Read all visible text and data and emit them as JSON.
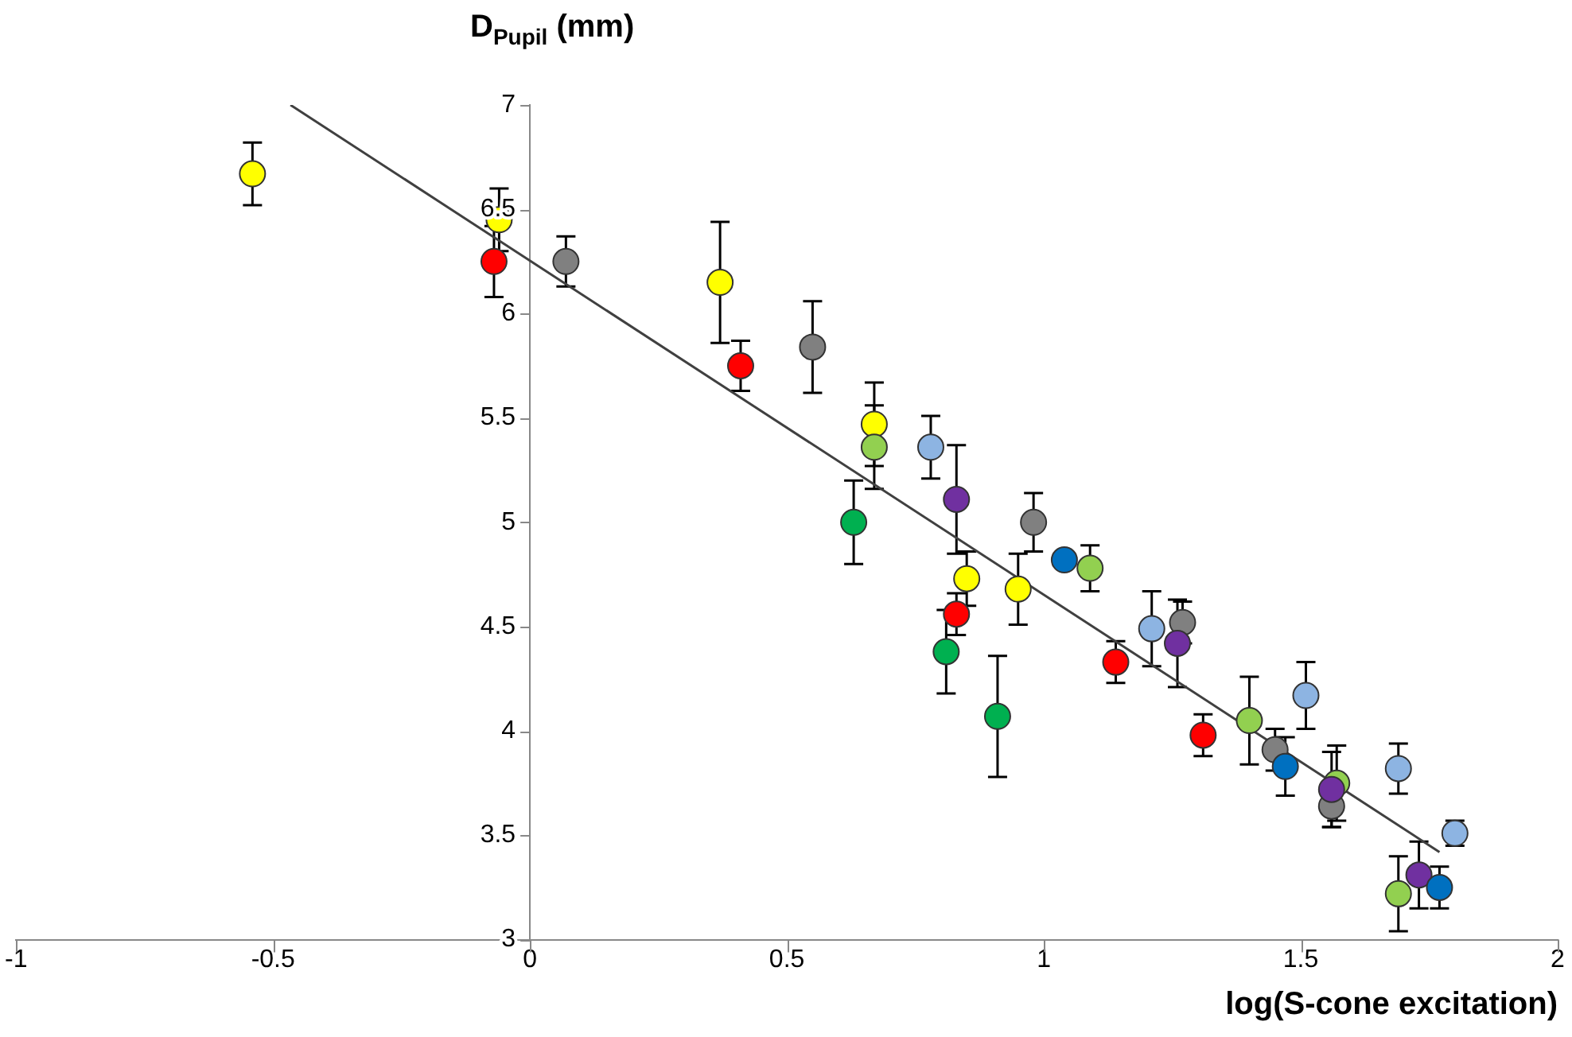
{
  "chart_data": {
    "type": "scatter",
    "xlabel": "log(S-cone excitation)",
    "ylabel": "D$_{Pupil}$ (mm)",
    "xlim": [
      -1,
      2
    ],
    "xticks": [
      -1,
      -0.5,
      0,
      0.5,
      1,
      1.5,
      2
    ],
    "ylim": [
      3,
      7
    ],
    "yticks": [
      3,
      3.5,
      4,
      4.5,
      5,
      5.5,
      6,
      6.5,
      7
    ],
    "grid": false,
    "legend": false,
    "marker": "circle",
    "series": [
      {
        "color": "#ffff00",
        "x": [
          -0.54,
          -0.06,
          0.37,
          0.67,
          0.85,
          0.95
        ],
        "values": [
          6.67,
          6.45,
          6.15,
          5.47,
          4.73,
          4.68
        ],
        "errors": [
          0.15,
          0.15,
          0.29,
          0.2,
          0.13,
          0.17
        ]
      },
      {
        "color": "#ff0000",
        "x": [
          -0.07,
          0.41,
          0.83,
          1.14,
          1.31
        ],
        "values": [
          6.25,
          5.75,
          4.56,
          4.33,
          3.98
        ],
        "errors": [
          0.17,
          0.12,
          0.1,
          0.1,
          0.1
        ]
      },
      {
        "color": "#808080",
        "x": [
          0.07,
          0.55,
          0.98,
          1.27,
          1.45,
          1.56
        ],
        "values": [
          6.25,
          5.84,
          5.0,
          4.52,
          3.91,
          3.64
        ],
        "errors": [
          0.12,
          0.22,
          0.14,
          0.1,
          0.1,
          0.1
        ]
      },
      {
        "color": "#92d050",
        "x": [
          0.67,
          1.09,
          1.4,
          1.57,
          1.69
        ],
        "values": [
          5.36,
          4.78,
          4.05,
          3.75,
          3.22
        ],
        "errors": [
          0.2,
          0.11,
          0.21,
          0.18,
          0.18
        ]
      },
      {
        "color": "#00b050",
        "x": [
          0.63,
          0.81,
          0.91
        ],
        "values": [
          5.0,
          4.38,
          4.07
        ],
        "errors": [
          0.2,
          0.2,
          0.29
        ]
      },
      {
        "color": "#7030a0",
        "x": [
          0.83,
          1.26,
          1.56,
          1.73
        ],
        "values": [
          5.11,
          4.42,
          3.72,
          3.31
        ],
        "errors": [
          0.26,
          0.21,
          0.18,
          0.16
        ]
      },
      {
        "color": "#0070c0",
        "x": [
          1.04,
          1.47,
          1.77
        ],
        "values": [
          4.82,
          3.83,
          3.25
        ],
        "errors": [
          null,
          0.14,
          0.1
        ]
      },
      {
        "color": "#8db4e2",
        "x": [
          0.78,
          1.21,
          1.51,
          1.69,
          1.8
        ],
        "values": [
          5.36,
          4.49,
          4.17,
          3.82,
          3.51
        ],
        "errors": [
          0.15,
          0.18,
          0.16,
          0.12,
          0.06
        ]
      },
      {
        "type": "line",
        "color": "#404040",
        "x": [
          -0.466,
          1.77
        ],
        "values": [
          7.0,
          3.42
        ],
        "marker": "none"
      }
    ]
  }
}
